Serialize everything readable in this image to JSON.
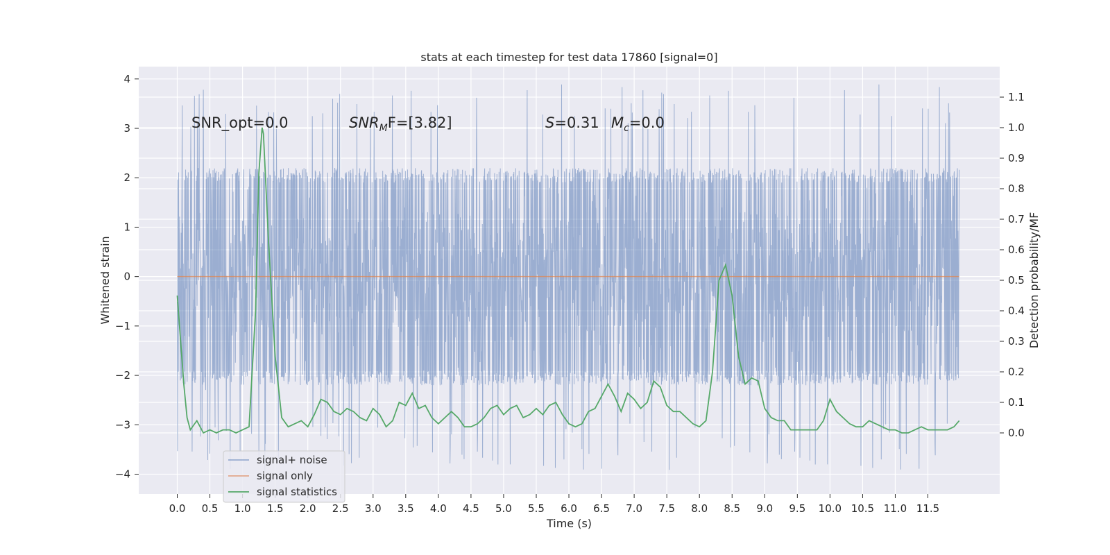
{
  "chart_data": {
    "type": "line",
    "title": "stats at each timestep for test data 17860 [signal=0]",
    "xlabel": "Time (s)",
    "ylabel_left": "Whitened strain",
    "ylabel_right": "Detection probability/MF",
    "xlim": [
      -0.59,
      12.6
    ],
    "ylim_left": [
      -4.4,
      4.25
    ],
    "ylim_right": [
      -0.2,
      1.2
    ],
    "xticks": [
      "0.0",
      "0.5",
      "1.0",
      "1.5",
      "2.0",
      "2.5",
      "3.0",
      "3.5",
      "4.0",
      "4.5",
      "5.0",
      "5.5",
      "6.0",
      "6.5",
      "7.0",
      "7.5",
      "8.0",
      "8.5",
      "9.0",
      "9.5",
      "10.0",
      "10.5",
      "11.0",
      "11.5"
    ],
    "yticks_left": [
      "−4",
      "−3",
      "−2",
      "−1",
      "0",
      "1",
      "2",
      "3",
      "4"
    ],
    "yticks_right": [
      "0.0",
      "0.1",
      "0.2",
      "0.3",
      "0.4",
      "0.5",
      "0.6",
      "0.7",
      "0.8",
      "0.9",
      "1.0",
      "1.1"
    ],
    "grid": true,
    "legend_position": "lower-left",
    "annotations": {
      "snr_opt": "SNR_opt=0.0",
      "snr_mf_base": "SNR",
      "snr_mf_sub": "M",
      "snr_mf_tail": "F=[3.82]",
      "s_sym": "S",
      "s_val": "=0.31",
      "mc_sym": "M",
      "mc_sub": "c",
      "mc_val": "=0.0"
    },
    "series": [
      {
        "name": "signal+ noise",
        "color": "#4c72b0",
        "axis": "left",
        "envelope": {
          "x_range": [
            0.0,
            11.98
          ],
          "typical_upper": 2.0,
          "typical_lower": -2.2,
          "max": 3.9,
          "min": -3.95
        }
      },
      {
        "name": "signal only",
        "color": "#dd8452",
        "axis": "left",
        "x": [
          0.0,
          11.98
        ],
        "y": [
          0.0,
          0.0
        ]
      },
      {
        "name": "signal statistics",
        "color": "#55a868",
        "axis": "right",
        "x": [
          0.0,
          0.1,
          0.15,
          0.2,
          0.3,
          0.4,
          0.5,
          0.6,
          0.7,
          0.8,
          0.9,
          1.0,
          1.1,
          1.2,
          1.25,
          1.3,
          1.32,
          1.4,
          1.5,
          1.6,
          1.7,
          1.8,
          1.9,
          2.0,
          2.1,
          2.2,
          2.3,
          2.4,
          2.5,
          2.6,
          2.7,
          2.8,
          2.9,
          3.0,
          3.1,
          3.2,
          3.3,
          3.4,
          3.5,
          3.6,
          3.7,
          3.8,
          3.9,
          4.0,
          4.1,
          4.2,
          4.3,
          4.4,
          4.5,
          4.6,
          4.7,
          4.8,
          4.9,
          5.0,
          5.1,
          5.2,
          5.3,
          5.4,
          5.5,
          5.6,
          5.7,
          5.8,
          5.9,
          6.0,
          6.1,
          6.2,
          6.3,
          6.4,
          6.5,
          6.6,
          6.7,
          6.8,
          6.9,
          7.0,
          7.1,
          7.2,
          7.3,
          7.4,
          7.5,
          7.6,
          7.7,
          7.8,
          7.9,
          8.0,
          8.1,
          8.2,
          8.3,
          8.4,
          8.5,
          8.6,
          8.7,
          8.8,
          8.9,
          9.0,
          9.1,
          9.2,
          9.3,
          9.4,
          9.5,
          9.6,
          9.7,
          9.8,
          9.9,
          10.0,
          10.1,
          10.2,
          10.3,
          10.4,
          10.5,
          10.6,
          10.7,
          10.8,
          10.9,
          11.0,
          11.1,
          11.2,
          11.3,
          11.4,
          11.5,
          11.6,
          11.7,
          11.8,
          11.9,
          11.98
        ],
        "y": [
          0.45,
          0.16,
          0.05,
          0.01,
          0.04,
          0.0,
          0.01,
          0.0,
          0.01,
          0.01,
          0.0,
          0.01,
          0.02,
          0.4,
          0.85,
          1.0,
          0.98,
          0.62,
          0.25,
          0.05,
          0.02,
          0.03,
          0.04,
          0.02,
          0.06,
          0.11,
          0.1,
          0.07,
          0.06,
          0.08,
          0.07,
          0.05,
          0.04,
          0.08,
          0.06,
          0.02,
          0.04,
          0.1,
          0.09,
          0.13,
          0.08,
          0.09,
          0.05,
          0.03,
          0.05,
          0.07,
          0.05,
          0.02,
          0.02,
          0.03,
          0.05,
          0.08,
          0.09,
          0.06,
          0.08,
          0.09,
          0.05,
          0.06,
          0.08,
          0.06,
          0.09,
          0.1,
          0.06,
          0.03,
          0.02,
          0.03,
          0.07,
          0.08,
          0.12,
          0.16,
          0.12,
          0.07,
          0.13,
          0.11,
          0.08,
          0.1,
          0.17,
          0.15,
          0.09,
          0.07,
          0.07,
          0.05,
          0.03,
          0.02,
          0.04,
          0.2,
          0.5,
          0.55,
          0.45,
          0.25,
          0.16,
          0.18,
          0.17,
          0.08,
          0.05,
          0.04,
          0.04,
          0.01,
          0.01,
          0.01,
          0.01,
          0.01,
          0.04,
          0.11,
          0.07,
          0.05,
          0.03,
          0.02,
          0.02,
          0.04,
          0.03,
          0.02,
          0.01,
          0.01,
          0.0,
          0.0,
          0.01,
          0.02,
          0.01,
          0.01,
          0.01,
          0.01,
          0.02,
          0.04
        ]
      }
    ]
  }
}
